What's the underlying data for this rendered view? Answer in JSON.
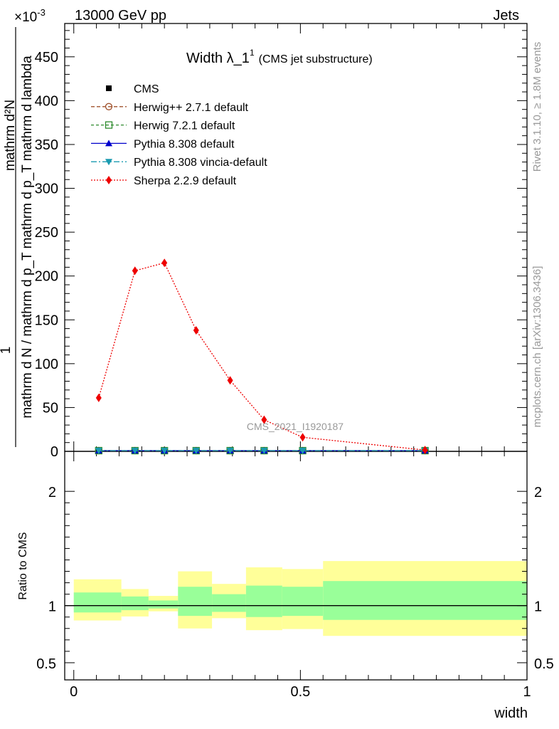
{
  "header": {
    "left": "13000 GeV pp",
    "right": "Jets",
    "exponent": "×10",
    "exponent_power": "-3"
  },
  "side_labels": {
    "rivet": "Rivet 3.1.10, ≥ 1.8M events",
    "mcplots": "mcplots.cern.ch [arXiv:1306.3436]"
  },
  "watermark": "CMS_2021_I1920187",
  "colors": {
    "cms": "#000000",
    "herwigpp": "#a0522d",
    "herwig7": "#2e8b2e",
    "pythia": "#0000cc",
    "vincia": "#1a9ab0",
    "sherpa": "#ee0000",
    "band_inner": "#99ff99",
    "band_outer": "#ffff99"
  },
  "chart_data": [
    {
      "type": "line",
      "title": "Width λ_1",
      "title_sup": "1",
      "title_suffix": "(CMS jet substructure)",
      "ylabel_top": "1",
      "ylabel_num": "mathrm d²N",
      "ylabel_den": "mathrm d N / mathrm d p_T mathrm d p_T mathrm d lambda",
      "ylim": [
        0,
        488
      ],
      "y_scale_note": "values in units of 10^-3",
      "yticks": [
        0,
        50,
        100,
        150,
        200,
        250,
        300,
        350,
        400,
        450
      ],
      "xlim": [
        -0.02,
        1.0
      ],
      "grid": false,
      "legend_position": "top-left",
      "legend": [
        {
          "name": "CMS",
          "style": "square-filled",
          "color": "#000000"
        },
        {
          "name": "Herwig++ 2.7.1 default",
          "style": "circle-open-dashed",
          "color": "#a0522d"
        },
        {
          "name": "Herwig 7.2.1 default",
          "style": "square-open-dashed",
          "color": "#2e8b2e"
        },
        {
          "name": "Pythia 8.308 default",
          "style": "triangle-up-solid",
          "color": "#0000cc"
        },
        {
          "name": "Pythia 8.308 vincia-default",
          "style": "triangle-down-dashdot",
          "color": "#1a9ab0"
        },
        {
          "name": "Sherpa 2.2.9 default",
          "style": "diamond-dotted",
          "color": "#ee0000"
        }
      ],
      "x": [
        0.055,
        0.135,
        0.2,
        0.27,
        0.345,
        0.42,
        0.505,
        0.775
      ],
      "series": [
        {
          "name": "CMS",
          "values": [
            0.8,
            0.8,
            0.8,
            0.8,
            0.8,
            0.8,
            0.8,
            0.8
          ]
        },
        {
          "name": "Herwig++ 2.7.1 default",
          "values": [
            0.8,
            0.8,
            0.8,
            0.8,
            0.8,
            0.8,
            0.8,
            0.8
          ]
        },
        {
          "name": "Herwig 7.2.1 default",
          "values": [
            0.8,
            0.8,
            0.8,
            0.8,
            0.8,
            0.8,
            0.8,
            0.8
          ]
        },
        {
          "name": "Pythia 8.308 default",
          "values": [
            0.8,
            0.8,
            0.8,
            0.8,
            0.8,
            0.8,
            0.8,
            0.8
          ]
        },
        {
          "name": "Pythia 8.308 vincia-default",
          "values": [
            0.8,
            0.8,
            0.8,
            0.8,
            0.8,
            0.8,
            0.8,
            0.8
          ]
        },
        {
          "name": "Sherpa 2.2.9 default",
          "values": [
            61,
            206,
            215,
            138,
            81,
            36,
            16,
            1.5
          ],
          "errors": [
            3,
            4,
            4,
            3,
            2.5,
            2,
            1.5,
            0.5
          ]
        }
      ]
    },
    {
      "type": "area",
      "ylabel": "Ratio to CMS",
      "xlabel": "width",
      "ylim": [
        0.35,
        2.35
      ],
      "yticks": [
        0.5,
        1,
        2
      ],
      "ytick_labels": [
        "0.5",
        "1",
        "2"
      ],
      "xlim": [
        -0.02,
        1.0
      ],
      "xticks": [
        0,
        0.5,
        1
      ],
      "xtick_labels": [
        "0",
        "0.5",
        "1"
      ],
      "reference_line": 1,
      "bins": [
        {
          "x0": 0.0,
          "x1": 0.105,
          "inner": [
            0.94,
            1.115
          ],
          "outer": [
            0.87,
            1.23
          ]
        },
        {
          "x0": 0.105,
          "x1": 0.165,
          "inner": [
            0.96,
            1.08
          ],
          "outer": [
            0.905,
            1.145
          ]
        },
        {
          "x0": 0.165,
          "x1": 0.23,
          "inner": [
            0.975,
            1.045
          ],
          "outer": [
            0.95,
            1.085
          ]
        },
        {
          "x0": 0.23,
          "x1": 0.305,
          "inner": [
            0.91,
            1.165
          ],
          "outer": [
            0.8,
            1.3
          ]
        },
        {
          "x0": 0.305,
          "x1": 0.38,
          "inner": [
            0.945,
            1.1
          ],
          "outer": [
            0.89,
            1.19
          ]
        },
        {
          "x0": 0.38,
          "x1": 0.46,
          "inner": [
            0.9,
            1.175
          ],
          "outer": [
            0.785,
            1.335
          ]
        },
        {
          "x0": 0.46,
          "x1": 0.55,
          "inner": [
            0.91,
            1.165
          ],
          "outer": [
            0.795,
            1.32
          ]
        },
        {
          "x0": 0.55,
          "x1": 1.0,
          "inner": [
            0.875,
            1.215
          ],
          "outer": [
            0.735,
            1.39
          ]
        }
      ]
    }
  ]
}
